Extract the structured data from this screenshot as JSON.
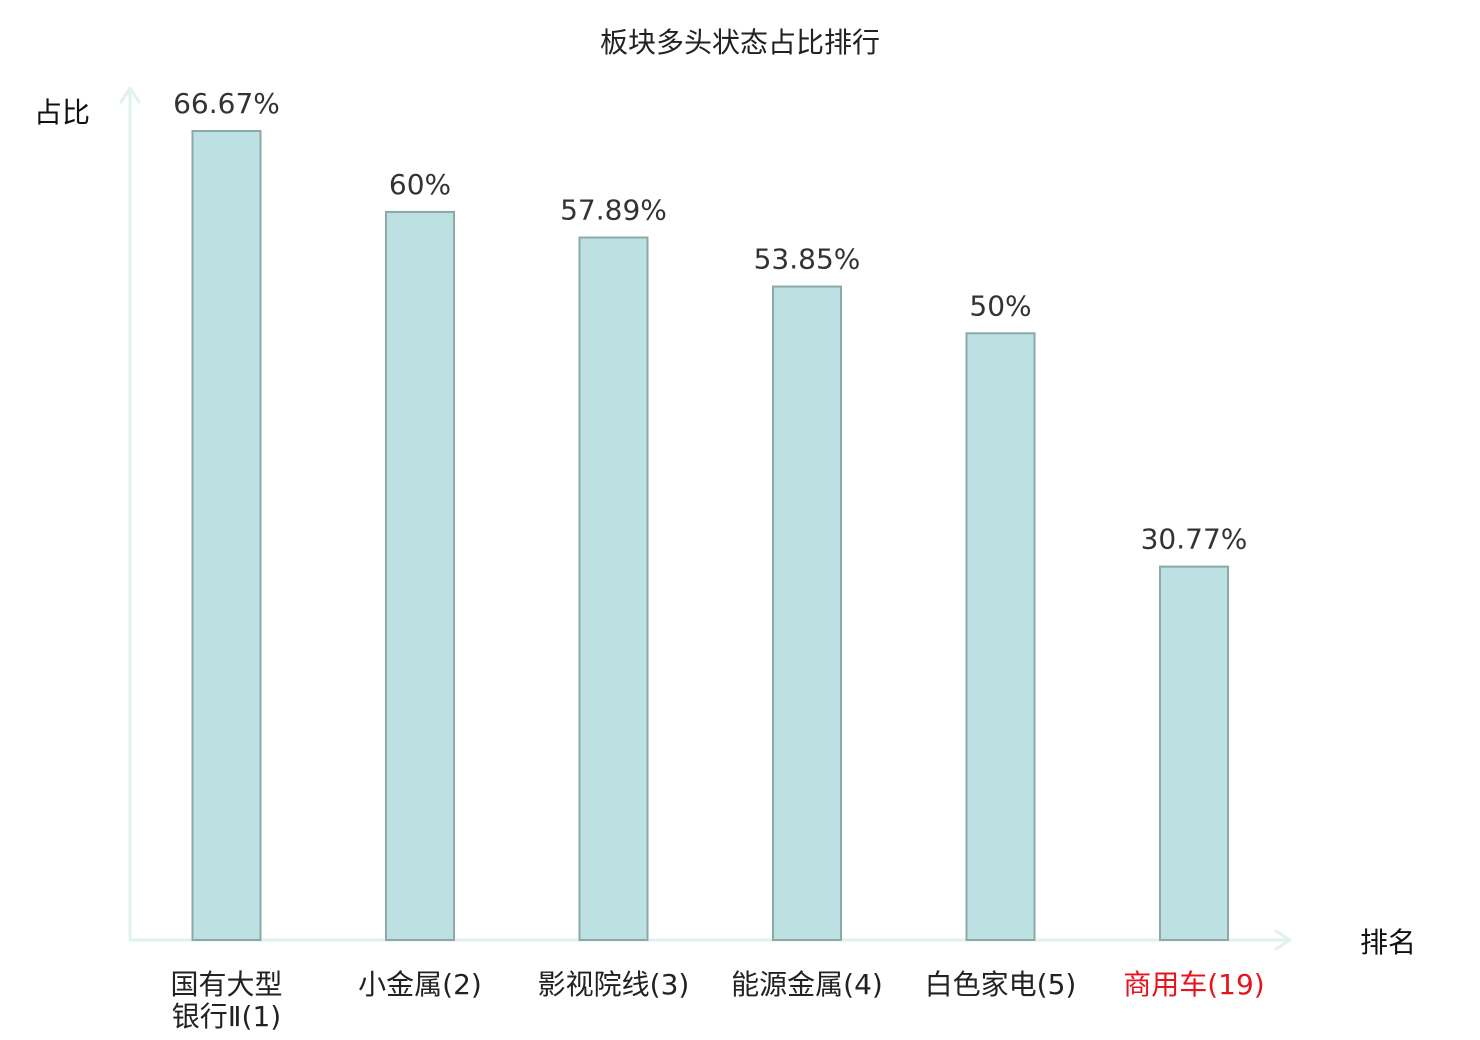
{
  "chart_data": {
    "type": "bar",
    "title": "板块多头状态占比排行",
    "xlabel": "排名",
    "ylabel": "占比",
    "categories": [
      {
        "lines": [
          "国有大型",
          "银行Ⅱ(1)"
        ],
        "highlight": false
      },
      {
        "lines": [
          "小金属(2)"
        ],
        "highlight": false
      },
      {
        "lines": [
          "影视院线(3)"
        ],
        "highlight": false
      },
      {
        "lines": [
          "能源金属(4)"
        ],
        "highlight": false
      },
      {
        "lines": [
          "白色家电(5)"
        ],
        "highlight": false
      },
      {
        "lines": [
          "商用车(19)"
        ],
        "highlight": true
      }
    ],
    "values": [
      66.67,
      60,
      57.89,
      53.85,
      50,
      30.77
    ],
    "value_labels": [
      "66.67%",
      "60%",
      "57.89%",
      "53.85%",
      "50%",
      "30.77%"
    ],
    "ylim": [
      0,
      66.67
    ],
    "grid": false,
    "legend": "none",
    "colors": {
      "bar_fill": "#bde1e3",
      "bar_stroke": "#8aaaa9",
      "axis": "#e0f2ef",
      "label_text": "#222222",
      "highlight_text": "#e8141c"
    }
  }
}
